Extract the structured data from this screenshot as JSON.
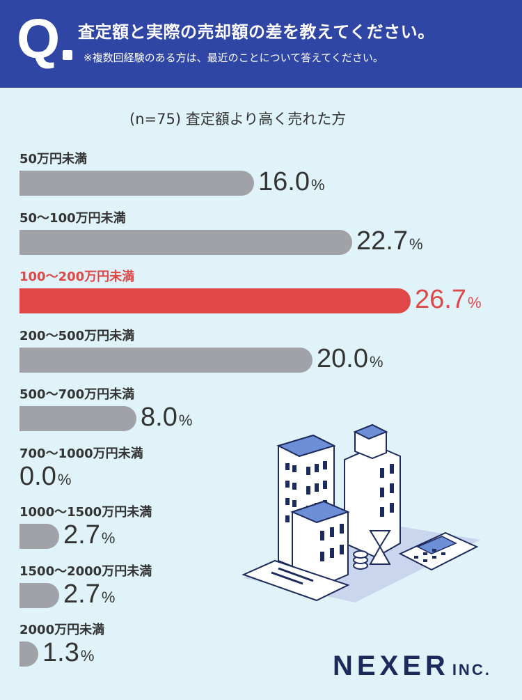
{
  "header": {
    "title": "査定額と実際の売却額の差を教えてください。",
    "note": "※複数回経験のある方は、最近のことについて答えてください。",
    "q_letter": "Q"
  },
  "subtitle": {
    "n": "(n=75)",
    "text": "査定額より高く売れた方"
  },
  "chart_data": {
    "type": "bar",
    "title": "査定額より高く売れた方",
    "n": 75,
    "unit": "%",
    "orientation": "horizontal",
    "highlight_color": "#e04848",
    "bar_color": "#a0a2a7",
    "categories": [
      "50万円未満",
      "50〜100万円未満",
      "100〜200万円未満",
      "200〜500万円未満",
      "500〜700万円未満",
      "700〜1000万円未満",
      "1000〜1500万円未満",
      "1500〜2000万円未満",
      "2000万円未満"
    ],
    "values": [
      16.0,
      22.7,
      26.7,
      20.0,
      8.0,
      0.0,
      2.7,
      2.7,
      1.3
    ],
    "value_labels": [
      "16.0",
      "22.7",
      "26.7",
      "20.0",
      "8.0",
      "0.0",
      "2.7",
      "2.7",
      "1.3"
    ],
    "highlight_index": 2,
    "xlim": [
      0,
      26.7
    ]
  },
  "logo": {
    "main": "NEXER",
    "suffix": "INC."
  }
}
